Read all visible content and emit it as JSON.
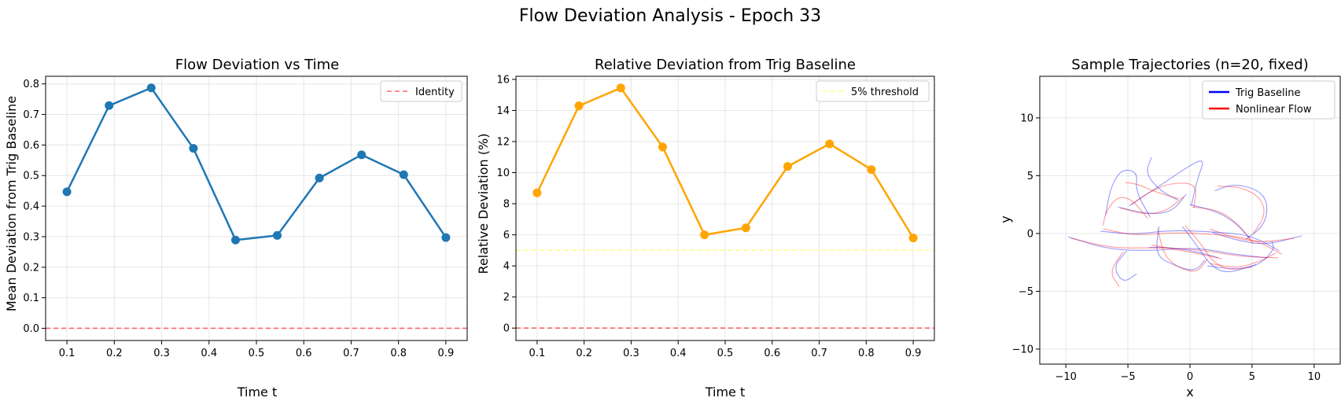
{
  "figure": {
    "title": "Flow Deviation Analysis - Epoch 33"
  },
  "chart_data": [
    {
      "type": "line",
      "title": "Flow Deviation vs Time",
      "xlabel": "Time t",
      "ylabel": "Mean Deviation from Trig Baseline",
      "xlim": [
        0.055,
        0.945
      ],
      "ylim": [
        -0.04,
        0.825
      ],
      "xticks": [
        0.1,
        0.2,
        0.3,
        0.4,
        0.5,
        0.6,
        0.7,
        0.8,
        0.9
      ],
      "yticks": [
        0.0,
        0.1,
        0.2,
        0.3,
        0.4,
        0.5,
        0.6,
        0.7,
        0.8
      ],
      "xtick_labels": [
        "0.1",
        "0.2",
        "0.3",
        "0.4",
        "0.5",
        "0.6",
        "0.7",
        "0.8",
        "0.9"
      ],
      "ytick_labels": [
        "0.0",
        "0.1",
        "0.2",
        "0.3",
        "0.4",
        "0.5",
        "0.6",
        "0.7",
        "0.8"
      ],
      "grid": true,
      "legend_position": "top-right",
      "series": [
        {
          "values_x": [
            0.1,
            0.189,
            0.278,
            0.367,
            0.456,
            0.544,
            0.633,
            0.722,
            0.811,
            0.9
          ],
          "values": [
            0.447,
            0.729,
            0.787,
            0.589,
            0.289,
            0.304,
            0.492,
            0.568,
            0.503,
            0.297
          ],
          "color": "#1f77b4",
          "style": "solid-marker"
        }
      ],
      "reference_lines": [
        {
          "name": "Identity",
          "y": 0.0,
          "color": "#ff6666",
          "style": "dashed"
        }
      ]
    },
    {
      "type": "line",
      "title": "Relative Deviation from Trig Baseline",
      "xlabel": "Time t",
      "ylabel": "Relative Deviation (%)",
      "xlim": [
        0.055,
        0.945
      ],
      "ylim": [
        -0.8,
        16.2
      ],
      "xticks": [
        0.1,
        0.2,
        0.3,
        0.4,
        0.5,
        0.6,
        0.7,
        0.8,
        0.9
      ],
      "yticks": [
        0,
        2,
        4,
        6,
        8,
        10,
        12,
        14,
        16
      ],
      "xtick_labels": [
        "0.1",
        "0.2",
        "0.3",
        "0.4",
        "0.5",
        "0.6",
        "0.7",
        "0.8",
        "0.9"
      ],
      "ytick_labels": [
        "0",
        "2",
        "4",
        "6",
        "8",
        "10",
        "12",
        "14",
        "16"
      ],
      "grid": true,
      "legend_position": "top-right",
      "series": [
        {
          "values_x": [
            0.1,
            0.189,
            0.278,
            0.367,
            0.456,
            0.544,
            0.633,
            0.722,
            0.811,
            0.9
          ],
          "values": [
            8.7,
            14.3,
            15.45,
            11.65,
            6.0,
            6.45,
            10.4,
            11.85,
            10.2,
            5.8
          ],
          "color": "#ffa500",
          "style": "solid-marker"
        }
      ],
      "reference_lines": [
        {
          "name": "5% threshold",
          "y": 5,
          "color": "#ffff80",
          "style": "dashed"
        },
        {
          "y": 0,
          "color": "#ff6666",
          "style": "dashed"
        }
      ]
    },
    {
      "type": "line",
      "title": "Sample Trajectories (n=20, fixed)",
      "xlabel": "x",
      "ylabel": "y",
      "xlim": [
        -12.1,
        12.1
      ],
      "ylim": [
        -11.3,
        13.6
      ],
      "xticks": [
        -10,
        -5,
        0,
        5,
        10
      ],
      "yticks": [
        -10,
        -5,
        0,
        5,
        10
      ],
      "xtick_labels": [
        "−10",
        "−5",
        "0",
        "5",
        "10"
      ],
      "ytick_labels": [
        "−10",
        "−5",
        "0",
        "5",
        "10"
      ],
      "grid": true,
      "legend_position": "top-right",
      "legend": [
        {
          "name": "Trig Baseline",
          "color": "#0000ff"
        },
        {
          "name": "Nonlinear Flow",
          "color": "#ff0000"
        }
      ],
      "trajectories": {
        "blue": [
          [
            [
              -9.8,
              -0.3
            ],
            [
              -6.5,
              -1.4
            ],
            [
              -3,
              -1.5
            ],
            [
              0.5,
              -1.2
            ],
            [
              3.5,
              -1.8
            ],
            [
              6.2,
              -2.1
            ]
          ],
          [
            [
              -3.2,
              1.4
            ],
            [
              -4.4,
              3.7
            ],
            [
              -4.2,
              5.3
            ],
            [
              -5.5,
              5.6
            ],
            [
              -6.4,
              4
            ],
            [
              -6.8,
              1.6
            ]
          ],
          [
            [
              -7.2,
              0.2
            ],
            [
              -4.5,
              -0.1
            ],
            [
              -1.5,
              0.3
            ],
            [
              2.5,
              0.1
            ],
            [
              5,
              -0.2
            ],
            [
              7.2,
              -1.5
            ]
          ],
          [
            [
              1.4,
              -2.8
            ],
            [
              3.5,
              -3.1
            ],
            [
              5.5,
              -2.8
            ],
            [
              6.8,
              -1.4
            ],
            [
              6.6,
              -0.7
            ]
          ],
          [
            [
              0,
              2.5
            ],
            [
              2.2,
              1.9
            ],
            [
              3.7,
              0.9
            ],
            [
              4.8,
              -0.4
            ]
          ],
          [
            [
              -5.8,
              2.3
            ],
            [
              -3.6,
              1.7
            ],
            [
              -1.5,
              1.8
            ],
            [
              -0.3,
              3.4
            ]
          ],
          [
            [
              -2.5,
              0.6
            ],
            [
              -2.8,
              -1.9
            ],
            [
              -1.2,
              -2.8
            ],
            [
              0.4,
              -3.3
            ],
            [
              1.2,
              -2.3
            ]
          ],
          [
            [
              2,
              3.7
            ],
            [
              3.5,
              4.3
            ],
            [
              5.5,
              3.8
            ],
            [
              6.3,
              2.6
            ],
            [
              6,
              0.7
            ],
            [
              4.5,
              -0.5
            ]
          ],
          [
            [
              -5.1,
              -1.5
            ],
            [
              -6.2,
              -2.9
            ],
            [
              -5.4,
              -4.3
            ],
            [
              -4.3,
              -3.5
            ]
          ],
          [
            [
              -4.9,
              2.4
            ],
            [
              -2.2,
              4.3
            ],
            [
              0,
              5.9
            ],
            [
              1.2,
              6.5
            ],
            [
              0.6,
              4.7
            ],
            [
              0.1,
              2.4
            ]
          ],
          [
            [
              -0.6,
              0.6
            ],
            [
              0.6,
              -1.1
            ],
            [
              1.6,
              -2.7
            ],
            [
              2.9,
              -3.5
            ],
            [
              5.3,
              -2.7
            ]
          ],
          [
            [
              -1,
              2.9
            ],
            [
              -2.4,
              3.7
            ],
            [
              -3.6,
              5.2
            ],
            [
              -3.1,
              6.6
            ]
          ],
          [
            [
              1.8,
              0.1
            ],
            [
              3.8,
              -0.6
            ],
            [
              6.1,
              -1
            ],
            [
              9,
              -0.2
            ]
          ],
          [
            [
              -3.3,
              -1.2
            ],
            [
              -1.8,
              -1.2
            ],
            [
              0.3,
              -1.5
            ],
            [
              2.3,
              -2.1
            ]
          ]
        ],
        "red": [
          [
            [
              -9.6,
              -0.4
            ],
            [
              -6.2,
              -1.3
            ],
            [
              -2.8,
              -1.2
            ],
            [
              0.8,
              -1.4
            ],
            [
              4,
              -2
            ],
            [
              7.1,
              -2.1
            ]
          ],
          [
            [
              -3.4,
              1.3
            ],
            [
              -4.7,
              3
            ],
            [
              -5.9,
              3.2
            ],
            [
              -6.8,
              1.8
            ],
            [
              -7,
              0.7
            ]
          ],
          [
            [
              -7,
              0.4
            ],
            [
              -4.4,
              -0.2
            ],
            [
              -1.3,
              0.1
            ],
            [
              2.4,
              -0.1
            ],
            [
              5.2,
              -0.5
            ],
            [
              7.4,
              -1.8
            ]
          ],
          [
            [
              1.6,
              -2.6
            ],
            [
              3.8,
              -3
            ],
            [
              5.7,
              -2.4
            ],
            [
              6.9,
              -1.7
            ]
          ],
          [
            [
              0.2,
              2.3
            ],
            [
              2.4,
              2
            ],
            [
              4,
              0.7
            ],
            [
              5.1,
              -0.9
            ]
          ],
          [
            [
              -5.6,
              2.2
            ],
            [
              -3.4,
              1.6
            ],
            [
              -1.8,
              2
            ],
            [
              -0.5,
              3.2
            ]
          ],
          [
            [
              -2.6,
              0.4
            ],
            [
              -2.1,
              -1.9
            ],
            [
              -0.9,
              -3
            ],
            [
              0.6,
              -3.4
            ],
            [
              1.4,
              -2.2
            ]
          ],
          [
            [
              2.2,
              4.1
            ],
            [
              4.2,
              4
            ],
            [
              5.7,
              3.1
            ],
            [
              6.1,
              1.6
            ],
            [
              5.1,
              0
            ]
          ],
          [
            [
              -5.4,
              -1.6
            ],
            [
              -6.5,
              -3.3
            ],
            [
              -5.7,
              -4.6
            ]
          ],
          [
            [
              -4.7,
              2.5
            ],
            [
              -3.3,
              3.6
            ],
            [
              -1.5,
              4.4
            ],
            [
              0.6,
              4.3
            ],
            [
              0.3,
              2.2
            ]
          ],
          [
            [
              -0.4,
              0.7
            ],
            [
              0.9,
              -0.9
            ],
            [
              1.8,
              -2.4
            ],
            [
              3.1,
              -3.2
            ],
            [
              5,
              -2.9
            ]
          ],
          [
            [
              -0.9,
              3
            ],
            [
              -2.8,
              3.6
            ],
            [
              -4.3,
              4.3
            ],
            [
              -5.2,
              4.4
            ]
          ],
          [
            [
              1.6,
              0.4
            ],
            [
              3.6,
              -0.4
            ],
            [
              5.8,
              -0.8
            ],
            [
              8.4,
              -0.4
            ]
          ],
          [
            [
              -3.1,
              -1
            ],
            [
              -1.6,
              -1.3
            ],
            [
              0.5,
              -1.7
            ],
            [
              2.6,
              -2.2
            ]
          ]
        ]
      }
    }
  ]
}
